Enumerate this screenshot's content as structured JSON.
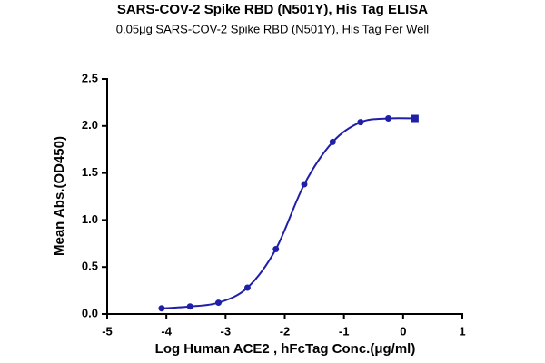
{
  "chart_data": {
    "type": "line",
    "title": "SARS-COV-2 Spike RBD (N501Y), His Tag ELISA",
    "subtitle": "0.05μg SARS-COV-2 Spike RBD (N501Y),  His Tag Per Well",
    "x_label": "Log Human ACE2 , hFcTag Conc.(μg/ml)",
    "y_label": "Mean Abs.(OD450)",
    "xlim": [
      -5,
      1
    ],
    "xticks": [
      -5,
      -4,
      -3,
      -2,
      -1,
      0,
      1
    ],
    "ylim": [
      0,
      2.5
    ],
    "yticks": [
      {
        "value": 0,
        "label": "0.0"
      },
      {
        "value": 0.5,
        "label": "0.5"
      },
      {
        "value": 1,
        "label": "1.0"
      },
      {
        "value": 1.5,
        "label": "1.5"
      },
      {
        "value": 2,
        "label": "2.0"
      },
      {
        "value": 2.5,
        "label": "2.5"
      }
    ],
    "x": [
      -4.08,
      -3.6,
      -3.12,
      -2.63,
      -2.15,
      -1.67,
      -1.19,
      -0.72,
      -0.25,
      0.2
    ],
    "series": [
      {
        "color": "#1f1fa8",
        "values": [
          0.06,
          0.08,
          0.12,
          0.28,
          0.69,
          1.38,
          1.83,
          2.04,
          2.08,
          2.08
        ],
        "markers": [
          "circle",
          "circle",
          "circle",
          "circle",
          "circle",
          "circle",
          "circle",
          "circle",
          "circle",
          "square"
        ]
      }
    ]
  }
}
